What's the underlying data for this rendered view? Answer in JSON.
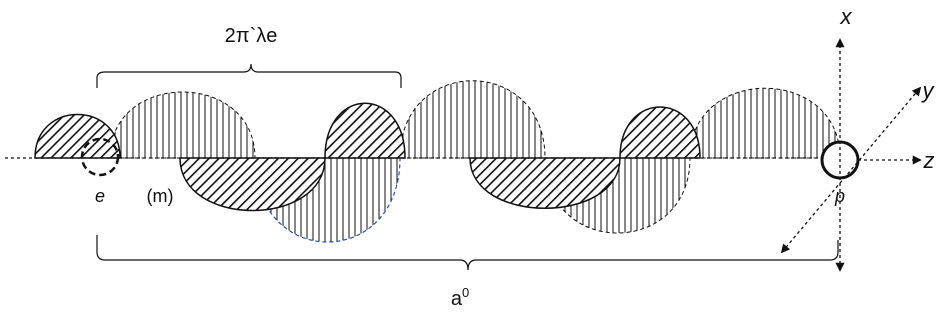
{
  "labels": {
    "wavelength": "2π`λe",
    "e": "e",
    "m": "(m)",
    "p": "p",
    "a0_base": "a",
    "a0_sup": "0"
  },
  "axes": {
    "x": "x",
    "y": "y",
    "z": "z"
  },
  "colors": {
    "ink": "#111111",
    "electric_fill": "#111111",
    "magnetic_fill": "#111111",
    "magnetic_outline": "#2f4fa0"
  }
}
